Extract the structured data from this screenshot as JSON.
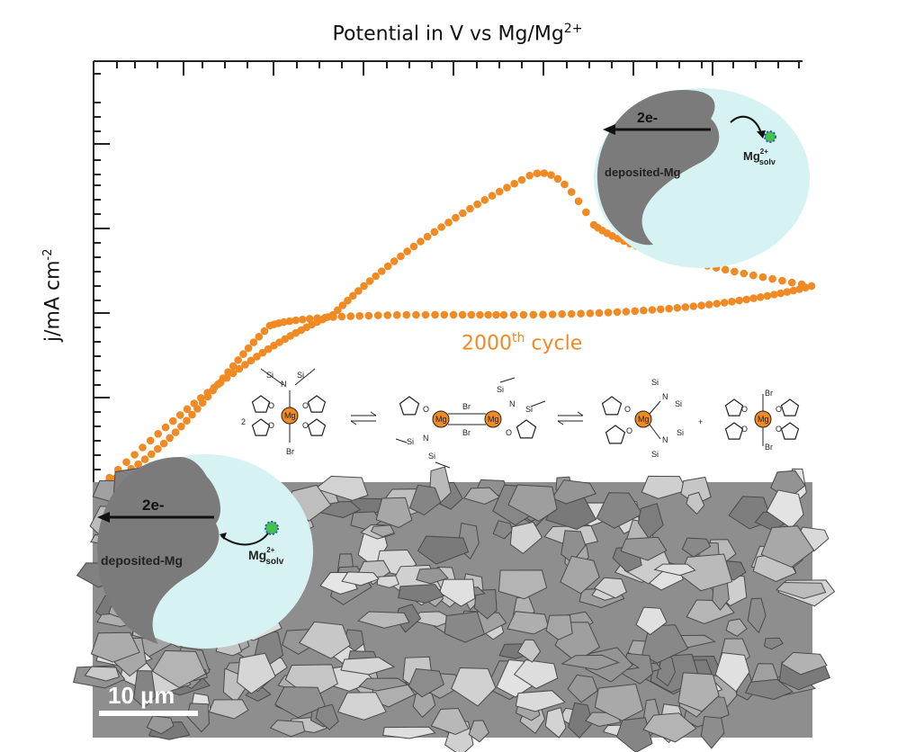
{
  "figure": {
    "title_prefix": "Potential in V vs Mg/Mg",
    "title_sup": "2+",
    "ylabel_prefix": "j/mA cm",
    "ylabel_sup": "-2",
    "cycle_prefix": "2000",
    "cycle_sup": "th",
    "cycle_suffix": " cycle",
    "scale_bar": "10 µm",
    "curve_color": "#f08a24"
  },
  "insets": {
    "top_right": {
      "electron_label": "2e-",
      "deposit_label": "deposited-Mg",
      "ion_label": "Mg",
      "ion_sup": "2+",
      "ion_sub": "solv"
    },
    "bottom_left": {
      "electron_label": "2e-",
      "deposit_label": "deposited-Mg",
      "ion_label": "Mg",
      "ion_sup": "2+",
      "ion_sub": "solv"
    }
  },
  "chemistry": {
    "coefficient": "2",
    "plus": "+",
    "mg": "Mg",
    "si": "Si",
    "n": "N",
    "o": "O",
    "br": "Br"
  }
}
